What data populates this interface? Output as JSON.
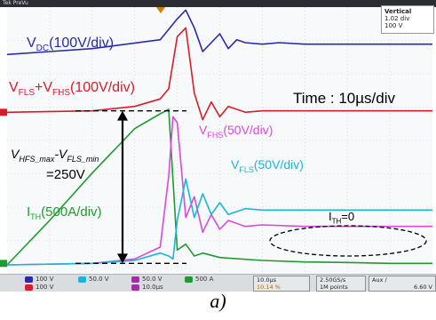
{
  "chart_data": {
    "type": "line",
    "title": "",
    "xlabel": "",
    "ylabel": "",
    "time_scale": "Time : 10µs/div",
    "series": [
      {
        "name": "V_DC",
        "label_main": "V",
        "label_sub": "DC",
        "label_rest": "(100V/div)",
        "color": "#2a2aa8",
        "x": [
          0,
          5,
          10,
          18,
          20,
          21,
          22,
          23,
          24,
          25,
          26,
          27,
          28,
          30,
          32,
          35,
          40,
          50
        ],
        "y": [
          3.1,
          3.2,
          3.3,
          3.6,
          4.3,
          4.6,
          4.0,
          3.2,
          3.5,
          3.8,
          3.3,
          3.6,
          3.5,
          3.45,
          3.5,
          3.45,
          3.45,
          3.45
        ]
      },
      {
        "name": "V_FLS+V_FHS",
        "label_main": "V",
        "label_sub1": "FLS",
        "label_mid": "+V",
        "label_sub2": "FHS",
        "label_rest": "(100V/div)",
        "color": "#d81c2a",
        "x": [
          0,
          10,
          15,
          18,
          19,
          20,
          21,
          22,
          23,
          24,
          25,
          26,
          28,
          30,
          35,
          40,
          50
        ],
        "y": [
          1.15,
          1.2,
          1.35,
          1.6,
          1.95,
          3.7,
          4.0,
          1.8,
          0.9,
          1.5,
          1.0,
          1.35,
          1.15,
          1.2,
          1.2,
          1.2,
          1.2
        ]
      },
      {
        "name": "V_FHS",
        "label_main": "V",
        "label_sub": "FHS",
        "label_rest": "(50V/div)",
        "color": "#d84ad8",
        "x": [
          0,
          10,
          15,
          18,
          19,
          19.5,
          20,
          21,
          22,
          23,
          24,
          25,
          26,
          28,
          30,
          35,
          40,
          50
        ],
        "y": [
          -4.0,
          -3.95,
          -3.8,
          -3.4,
          -1.0,
          1.0,
          0.8,
          -2.4,
          -1.7,
          -2.9,
          -2.3,
          -2.8,
          -2.5,
          -2.7,
          -2.65,
          -2.7,
          -2.7,
          -2.7
        ]
      },
      {
        "name": "V_FLS",
        "label_main": "V",
        "label_sub": "FLS",
        "label_rest": "(50V/div)",
        "color": "#1ab6d8",
        "x": [
          0,
          10,
          15,
          18,
          19,
          19.5,
          20,
          21,
          22,
          23,
          24,
          25,
          26,
          28,
          30,
          35,
          40,
          50
        ],
        "y": [
          -4.0,
          -3.95,
          -3.85,
          -3.6,
          -3.7,
          -3.8,
          -2.5,
          -1.1,
          -2.4,
          -1.6,
          -2.3,
          -1.9,
          -2.3,
          -2.1,
          -2.15,
          -2.15,
          -2.15,
          -2.15
        ]
      },
      {
        "name": "I_TH",
        "label_main": "I",
        "label_sub": "TH",
        "label_rest": "(500A/div)",
        "color": "#1e9a30",
        "x": [
          0,
          5,
          10,
          15,
          18,
          19,
          20,
          21,
          22,
          23,
          25,
          30,
          35,
          40,
          45,
          50
        ],
        "y": [
          -4.0,
          -2.5,
          -0.9,
          0.6,
          1.1,
          1.25,
          -3.5,
          -3.3,
          -3.7,
          -3.6,
          -3.75,
          -3.85,
          -3.9,
          -3.92,
          -3.95,
          -3.95
        ]
      }
    ],
    "annotations": {
      "v_diff_main": "V",
      "v_diff_sub1": "HFS_max",
      "v_diff_mid": "-V",
      "v_diff_sub2": "FLS_min",
      "v_diff_value": "=250V",
      "i_th_zero_main": "I",
      "i_th_zero_sub": "TH",
      "i_th_zero_rest": "=0"
    }
  },
  "scope": {
    "brand": "Tek PreVu",
    "vertical_box": {
      "line1": "Vertical",
      "line2": "1.02 div",
      "line3": "100 V"
    },
    "channels": [
      {
        "label": "100 V",
        "color": "#2a2aa8"
      },
      {
        "label": "50.0 V",
        "color": "#1ab6d8"
      },
      {
        "label": "50.0 V",
        "color": "#a030a0"
      },
      {
        "label": "500 A",
        "color": "#1e9a30"
      },
      {
        "label": "100 V",
        "color": "#d81c2a"
      },
      {
        "label": "10.0µs",
        "color": "#a030a0"
      }
    ],
    "timebase": {
      "line1": "10.0µs",
      "line2": "10.14 %"
    },
    "sample": {
      "line1": "2.50GS/s",
      "line2": "1M points"
    },
    "trigger": {
      "line1": "Aux ∕",
      "line2": "6.60 V"
    }
  },
  "caption": "a)"
}
